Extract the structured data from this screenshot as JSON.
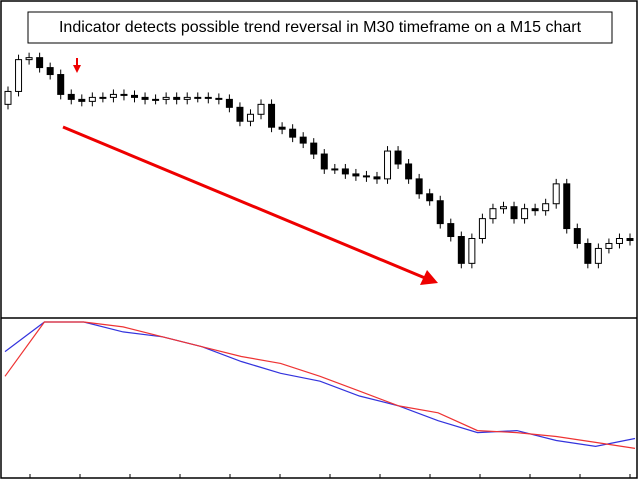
{
  "chart_data": [
    {
      "type": "candlestick",
      "title": "Indicator detects possible trend reversal in M30 timeframe on a M15 chart",
      "open": [
        215,
        228,
        260,
        262,
        252,
        245,
        225,
        220,
        218,
        222,
        222,
        225,
        224,
        222,
        220,
        220,
        222,
        220,
        222,
        222,
        221,
        220,
        212,
        198,
        205,
        215,
        192,
        190,
        182,
        176,
        165,
        150,
        150,
        145,
        143,
        142,
        140,
        168,
        155,
        140,
        125,
        118,
        95,
        82,
        55,
        80,
        100,
        110,
        112,
        100,
        110,
        108,
        115,
        135,
        90,
        75,
        55,
        70,
        75,
        80
      ],
      "high": [
        233,
        265,
        267,
        267,
        257,
        250,
        230,
        225,
        227,
        227,
        230,
        230,
        229,
        227,
        225,
        227,
        227,
        227,
        227,
        227,
        226,
        225,
        217,
        210,
        220,
        220,
        197,
        195,
        187,
        181,
        170,
        155,
        155,
        150,
        148,
        147,
        173,
        173,
        160,
        145,
        130,
        123,
        100,
        87,
        85,
        105,
        115,
        117,
        117,
        115,
        115,
        120,
        140,
        140,
        95,
        80,
        75,
        80,
        85,
        85
      ],
      "low": [
        210,
        223,
        255,
        247,
        240,
        220,
        215,
        213,
        213,
        217,
        217,
        219,
        217,
        215,
        215,
        215,
        215,
        215,
        217,
        216,
        215,
        207,
        193,
        193,
        200,
        187,
        185,
        177,
        171,
        160,
        145,
        145,
        140,
        138,
        137,
        135,
        135,
        150,
        135,
        120,
        113,
        90,
        77,
        50,
        50,
        75,
        95,
        105,
        95,
        95,
        103,
        103,
        110,
        85,
        70,
        50,
        50,
        65,
        70,
        73
      ],
      "close": [
        228,
        260,
        262,
        252,
        245,
        225,
        220,
        218,
        222,
        222,
        225,
        224,
        222,
        220,
        220,
        222,
        220,
        222,
        222,
        221,
        220,
        212,
        198,
        205,
        215,
        192,
        190,
        182,
        176,
        165,
        150,
        150,
        145,
        143,
        142,
        140,
        168,
        155,
        140,
        125,
        118,
        95,
        82,
        55,
        80,
        100,
        110,
        112,
        100,
        110,
        108,
        115,
        135,
        90,
        75,
        55,
        70,
        75,
        80,
        78
      ],
      "ylim": [
        0,
        318
      ]
    },
    {
      "type": "line",
      "series": [
        {
          "color": "#3333dd",
          "values": [
            128,
            158,
            158,
            148,
            143,
            133,
            118,
            106,
            98,
            83,
            73,
            58,
            46,
            48,
            38,
            32,
            40
          ]
        },
        {
          "color": "#ee3333",
          "values": [
            103,
            158,
            158,
            153,
            143,
            133,
            123,
            116,
            103,
            88,
            73,
            66,
            48,
            46,
            42,
            36,
            30
          ]
        }
      ],
      "ylim": [
        0,
        160
      ]
    }
  ]
}
